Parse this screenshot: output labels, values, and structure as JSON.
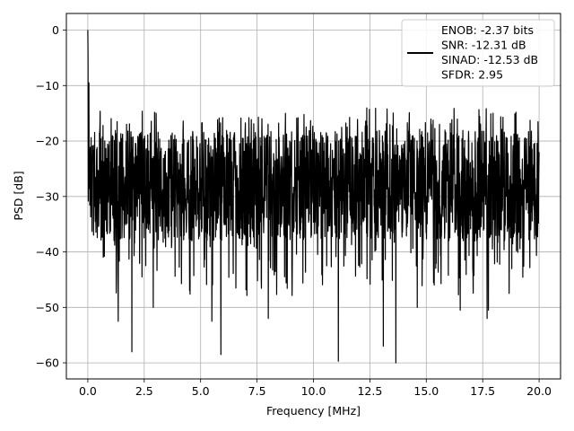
{
  "chart_data": {
    "type": "line",
    "xlabel": "Frequency [MHz]",
    "ylabel": "PSD [dB]",
    "xlim": [
      -0.95,
      20.95
    ],
    "ylim": [
      -62.9,
      3.0
    ],
    "xticks": [
      0.0,
      2.5,
      5.0,
      7.5,
      10.0,
      12.5,
      15.0,
      17.5,
      20.0
    ],
    "xtick_labels": [
      "0.0",
      "2.5",
      "5.0",
      "7.5",
      "10.0",
      "12.5",
      "15.0",
      "17.5",
      "20.0"
    ],
    "yticks": [
      0,
      -10,
      -20,
      -30,
      -40,
      -50,
      -60
    ],
    "ytick_labels": [
      "0",
      "−10",
      "−20",
      "−30",
      "−40",
      "−50",
      "−60"
    ],
    "grid": true,
    "legend_position": "top-right",
    "series": [
      {
        "name": "ENOB: -2.37 bits\nSNR: -12.31 dB\nSINAD: -12.53 dB\nSFDR: 2.95",
        "color": "#000000",
        "x_range": [
          0.0,
          20.0
        ],
        "num_points": 2049,
        "noise_floor_typical_range": [
          -38,
          -18
        ],
        "points": [
          [
            0.0,
            0.0
          ],
          [
            0.01,
            -4.5
          ],
          [
            0.03,
            -11
          ],
          [
            0.05,
            -9.5
          ],
          [
            0.08,
            -22
          ],
          [
            0.12,
            -26
          ],
          [
            1.35,
            -52.5
          ],
          [
            1.95,
            -58
          ],
          [
            2.9,
            -50
          ],
          [
            5.5,
            -52.5
          ],
          [
            5.9,
            -58.5
          ],
          [
            8.0,
            -52
          ],
          [
            11.1,
            -59.7
          ],
          [
            13.1,
            -57
          ],
          [
            13.65,
            -60
          ],
          [
            14.6,
            -50
          ],
          [
            16.5,
            -50.5
          ],
          [
            17.7,
            -52
          ],
          [
            17.75,
            -50.5
          ],
          [
            19.0,
            -19
          ],
          [
            20.0,
            -22
          ]
        ]
      }
    ]
  }
}
